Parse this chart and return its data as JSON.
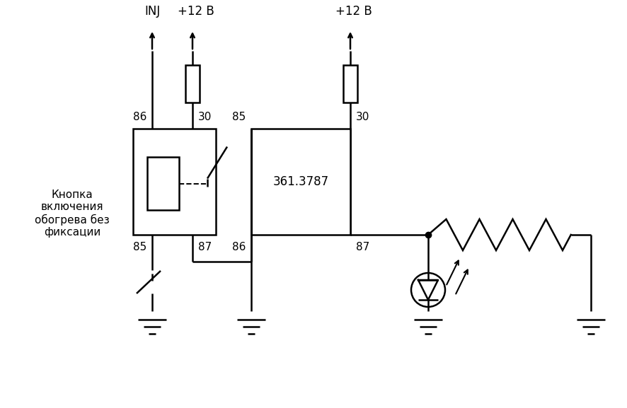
{
  "bg_color": "#ffffff",
  "line_color": "#000000",
  "line_width": 1.8,
  "text_color": "#000000",
  "inj_label": "INJ",
  "v12_label1": "+12 В",
  "v12_label2": "+12 В",
  "pin86_1": "86",
  "pin30_1": "30",
  "pin85_1": "85",
  "pin87_1": "87",
  "pin85_2": "85",
  "pin30_2": "30",
  "pin86_2": "86",
  "pin87_2": "87",
  "relay2_label": "361.3787",
  "button_label": "Кнопка\nвключения\nобогрева без\nфиксации"
}
